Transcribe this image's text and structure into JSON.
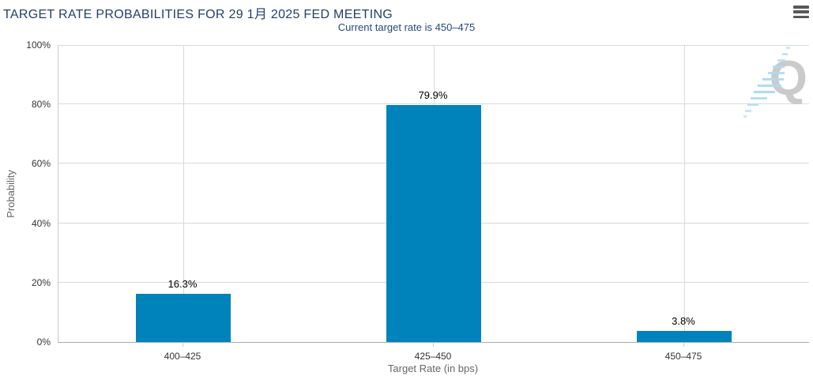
{
  "header": {
    "title": "TARGET RATE PROBABILITIES FOR 29 1月 2025 FED MEETING",
    "subtitle": "Current target rate is 450–475"
  },
  "colors": {
    "bar": "#0082BA",
    "title_text": "#22406B",
    "subtitle_text": "#24497A",
    "grid": "#D9D9D9",
    "y_axis_line": "#C9C9C9",
    "x_axis_line": "#ABABAB",
    "tick_label": "#333333",
    "axis_title": "#666666",
    "data_label": "#000000",
    "watermark_letter": "#CACACA",
    "watermark_dash": "#AEDCF0",
    "menu_icon": "#58595B"
  },
  "chart_data": {
    "type": "bar",
    "title": "TARGET RATE PROBABILITIES FOR 29 1月 2025 FED MEETING",
    "subtitle": "Current target rate is 450–475",
    "categories": [
      "400–425",
      "425–450",
      "450–475"
    ],
    "values": [
      16.3,
      79.9,
      3.8
    ],
    "data_labels": [
      "16.3%",
      "79.9%",
      "3.8%"
    ],
    "xlabel": "Target Rate (in bps)",
    "ylabel": "Probability",
    "ylim": [
      0,
      100
    ],
    "yticks": [
      0,
      20,
      40,
      60,
      80,
      100
    ],
    "ytick_labels": [
      "0%",
      "20%",
      "40%",
      "60%",
      "80%",
      "100%"
    ],
    "grid": true,
    "legend": false
  },
  "watermark": {
    "letter": "Q"
  }
}
